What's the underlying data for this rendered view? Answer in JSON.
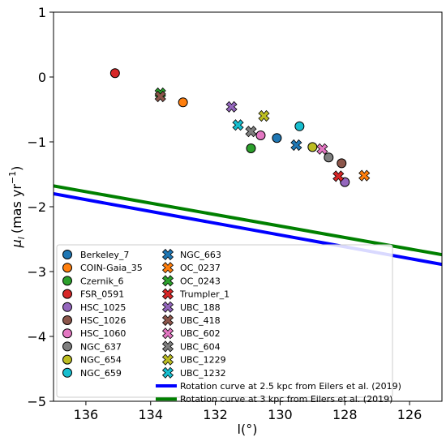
{
  "chart_data": {
    "type": "scatter",
    "xlabel": "l(°)",
    "ylabel_main": "μ",
    "ylabel_sub": "l",
    "ylabel_unit": "(mas yr",
    "ylabel_sup": "−1",
    "ylabel_close": ")",
    "x_inverted": true,
    "xlim": [
      137,
      125
    ],
    "ylim": [
      -5,
      1
    ],
    "xticks": [
      136,
      134,
      132,
      130,
      128,
      126
    ],
    "xtick_labels": [
      "136",
      "134",
      "132",
      "130",
      "128",
      "126"
    ],
    "yticks": [
      1,
      0,
      -1,
      -2,
      -3,
      -4,
      -5
    ],
    "ytick_labels": [
      "1",
      "0",
      "−1",
      "−2",
      "−3",
      "−4",
      "−5"
    ],
    "grid": false,
    "legend_placement": "bottom-center",
    "series": [
      {
        "name": "Berkeley_7",
        "marker": "circle",
        "color": "#1f77b4",
        "points": [
          [
            130.1,
            -0.94
          ]
        ]
      },
      {
        "name": "COIN-Gaia_35",
        "marker": "circle",
        "color": "#ff7f0e",
        "points": [
          [
            133.0,
            -0.39
          ]
        ]
      },
      {
        "name": "Czernik_6",
        "marker": "circle",
        "color": "#2ca02c",
        "points": [
          [
            130.9,
            -1.1
          ]
        ]
      },
      {
        "name": "FSR_0591",
        "marker": "circle",
        "color": "#d62728",
        "points": [
          [
            135.1,
            0.06
          ]
        ]
      },
      {
        "name": "HSC_1025",
        "marker": "circle",
        "color": "#9467bd",
        "points": [
          [
            128.0,
            -1.62
          ]
        ]
      },
      {
        "name": "HSC_1026",
        "marker": "circle",
        "color": "#8c564b",
        "points": [
          [
            128.1,
            -1.33
          ]
        ]
      },
      {
        "name": "HSC_1060",
        "marker": "circle",
        "color": "#e377c2",
        "points": [
          [
            130.6,
            -0.9
          ]
        ]
      },
      {
        "name": "NGC_637",
        "marker": "circle",
        "color": "#7f7f7f",
        "points": [
          [
            128.5,
            -1.24
          ]
        ]
      },
      {
        "name": "NGC_654",
        "marker": "circle",
        "color": "#bcbd22",
        "points": [
          [
            129.0,
            -1.08
          ]
        ]
      },
      {
        "name": "NGC_659",
        "marker": "circle",
        "color": "#17becf",
        "points": [
          [
            129.4,
            -0.76
          ]
        ]
      },
      {
        "name": "NGC_663",
        "marker": "x",
        "color": "#1f77b4",
        "points": [
          [
            129.5,
            -1.05
          ]
        ]
      },
      {
        "name": "OC_0237",
        "marker": "x",
        "color": "#ff7f0e",
        "points": [
          [
            127.4,
            -1.52
          ]
        ]
      },
      {
        "name": "OC_0243",
        "marker": "x",
        "color": "#2ca02c",
        "points": [
          [
            133.7,
            -0.25
          ]
        ]
      },
      {
        "name": "Trumpler_1",
        "marker": "x",
        "color": "#d62728",
        "points": [
          [
            128.2,
            -1.53
          ]
        ]
      },
      {
        "name": "UBC_188",
        "marker": "x",
        "color": "#9467bd",
        "points": [
          [
            131.5,
            -0.46
          ]
        ]
      },
      {
        "name": "UBC_418",
        "marker": "x",
        "color": "#8c564b",
        "points": [
          [
            133.7,
            -0.3
          ]
        ]
      },
      {
        "name": "UBC_602",
        "marker": "x",
        "color": "#e377c2",
        "points": [
          [
            128.7,
            -1.11
          ]
        ]
      },
      {
        "name": "UBC_604",
        "marker": "x",
        "color": "#7f7f7f",
        "points": [
          [
            130.9,
            -0.84
          ]
        ]
      },
      {
        "name": "UBC_1229",
        "marker": "x",
        "color": "#bcbd22",
        "points": [
          [
            130.5,
            -0.6
          ]
        ]
      },
      {
        "name": "UBC_1232",
        "marker": "x",
        "color": "#17becf",
        "points": [
          [
            131.3,
            -0.74
          ]
        ]
      }
    ],
    "lines": [
      {
        "name": "Rotation curve at 2.5 kpc from Eilers et al. (2019)",
        "color": "#0000ff",
        "x": [
          137,
          125
        ],
        "y": [
          -1.8,
          -2.89
        ]
      },
      {
        "name": "Rotation curve at 3 kpc from Eilers et al. (2019)",
        "color": "#008000",
        "x": [
          137,
          125
        ],
        "y": [
          -1.68,
          -2.74
        ]
      }
    ]
  }
}
